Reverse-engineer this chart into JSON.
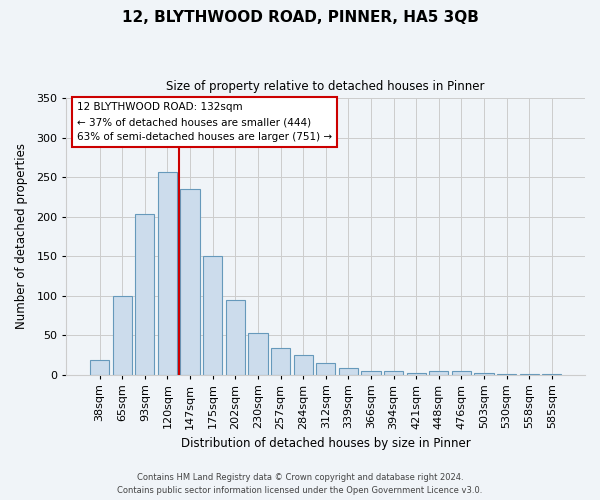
{
  "title": "12, BLYTHWOOD ROAD, PINNER, HA5 3QB",
  "subtitle": "Size of property relative to detached houses in Pinner",
  "xlabel": "Distribution of detached houses by size in Pinner",
  "ylabel": "Number of detached properties",
  "bar_labels": [
    "38sqm",
    "65sqm",
    "93sqm",
    "120sqm",
    "147sqm",
    "175sqm",
    "202sqm",
    "230sqm",
    "257sqm",
    "284sqm",
    "312sqm",
    "339sqm",
    "366sqm",
    "394sqm",
    "421sqm",
    "448sqm",
    "476sqm",
    "503sqm",
    "530sqm",
    "558sqm",
    "585sqm"
  ],
  "bar_values": [
    18,
    100,
    204,
    257,
    235,
    150,
    95,
    52,
    33,
    25,
    14,
    8,
    4,
    4,
    2,
    5,
    4,
    2,
    1,
    1,
    1
  ],
  "bar_color": "#ccdcec",
  "bar_edge_color": "#6699bb",
  "property_line_color": "#cc0000",
  "annotation_text": "12 BLYTHWOOD ROAD: 132sqm\n← 37% of detached houses are smaller (444)\n63% of semi-detached houses are larger (751) →",
  "annotation_box_color": "#ffffff",
  "annotation_box_edge_color": "#cc0000",
  "ylim": [
    0,
    350
  ],
  "yticks": [
    0,
    50,
    100,
    150,
    200,
    250,
    300,
    350
  ],
  "grid_color": "#cccccc",
  "bg_color": "#f0f4f8",
  "footer_line1": "Contains HM Land Registry data © Crown copyright and database right 2024.",
  "footer_line2": "Contains public sector information licensed under the Open Government Licence v3.0."
}
